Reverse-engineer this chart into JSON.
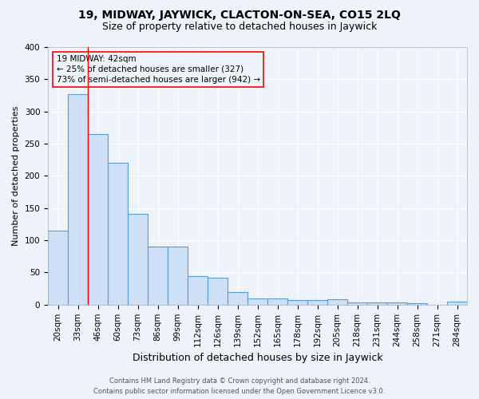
{
  "title": "19, MIDWAY, JAYWICK, CLACTON-ON-SEA, CO15 2LQ",
  "subtitle": "Size of property relative to detached houses in Jaywick",
  "xlabel": "Distribution of detached houses by size in Jaywick",
  "ylabel": "Number of detached properties",
  "categories": [
    "20sqm",
    "33sqm",
    "46sqm",
    "60sqm",
    "73sqm",
    "86sqm",
    "99sqm",
    "112sqm",
    "126sqm",
    "139sqm",
    "152sqm",
    "165sqm",
    "178sqm",
    "192sqm",
    "205sqm",
    "218sqm",
    "231sqm",
    "244sqm",
    "258sqm",
    "271sqm",
    "284sqm"
  ],
  "values": [
    115,
    327,
    265,
    220,
    141,
    90,
    90,
    45,
    42,
    20,
    10,
    10,
    7,
    7,
    8,
    3,
    3,
    3,
    2,
    0,
    5
  ],
  "bar_color": "#cde0f5",
  "bar_edge_color": "#5b9bd5",
  "red_line_index": 2,
  "annotation_text": "19 MIDWAY: 42sqm\n← 25% of detached houses are smaller (327)\n73% of semi-detached houses are larger (942) →",
  "footer_line1": "Contains HM Land Registry data © Crown copyright and database right 2024.",
  "footer_line2": "Contains public sector information licensed under the Open Government Licence v3.0.",
  "bg_color": "#eef2f9",
  "grid_color": "#ffffff",
  "title_fontsize": 10,
  "subtitle_fontsize": 9,
  "xlabel_fontsize": 9,
  "ylabel_fontsize": 8,
  "tick_fontsize": 7.5,
  "annotation_fontsize": 7.5,
  "footer_fontsize": 6,
  "ylim": [
    0,
    400
  ],
  "yticks": [
    0,
    50,
    100,
    150,
    200,
    250,
    300,
    350,
    400
  ]
}
